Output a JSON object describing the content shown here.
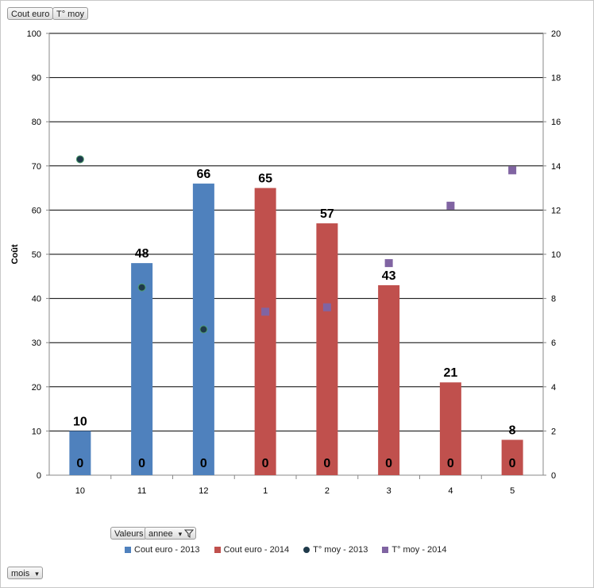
{
  "field_buttons": {
    "top": [
      "Cout euro",
      "T° moy"
    ],
    "values": "Valeurs",
    "annee": "annee",
    "mois": "mois"
  },
  "chart_data": {
    "type": "bar",
    "categories": [
      "10",
      "11",
      "12",
      "1",
      "2",
      "3",
      "4",
      "5"
    ],
    "ylabel": "Coût",
    "ylim": [
      0,
      100
    ],
    "y_ticks": [
      0,
      10,
      20,
      30,
      40,
      50,
      60,
      70,
      80,
      90,
      100
    ],
    "y2lim": [
      0,
      20
    ],
    "y2_ticks": [
      0,
      2,
      4,
      6,
      8,
      10,
      12,
      14,
      16,
      18,
      20
    ],
    "grid": true,
    "legend_position": "bottom",
    "series": [
      {
        "name": "Cout euro - 2013",
        "type": "bar",
        "axis": "left",
        "color": "#4f81bd",
        "values": [
          10,
          48,
          66,
          null,
          null,
          null,
          null,
          null
        ],
        "labels": [
          "10",
          "48",
          "66",
          null,
          null,
          null,
          null,
          null
        ]
      },
      {
        "name": "Cout euro - 2014",
        "type": "bar",
        "axis": "left",
        "color": "#c0504d",
        "values": [
          null,
          null,
          null,
          65,
          57,
          43,
          21,
          8
        ],
        "labels": [
          null,
          null,
          null,
          "65",
          "57",
          "43",
          "21",
          "8"
        ]
      },
      {
        "name": "T° moy - 2013",
        "type": "scatter",
        "axis": "right",
        "color": "#1f3a4a",
        "marker": "circle",
        "values": [
          14.3,
          8.5,
          6.6,
          null,
          null,
          null,
          null,
          null
        ]
      },
      {
        "name": "T° moy - 2014",
        "type": "scatter",
        "axis": "right",
        "color": "#8064a2",
        "marker": "square",
        "values": [
          null,
          null,
          null,
          7.4,
          7.6,
          9.6,
          12.2,
          13.8
        ]
      }
    ],
    "zero_labels": [
      "0",
      "0",
      "0",
      "0",
      "0",
      "0",
      "0",
      "0"
    ]
  }
}
